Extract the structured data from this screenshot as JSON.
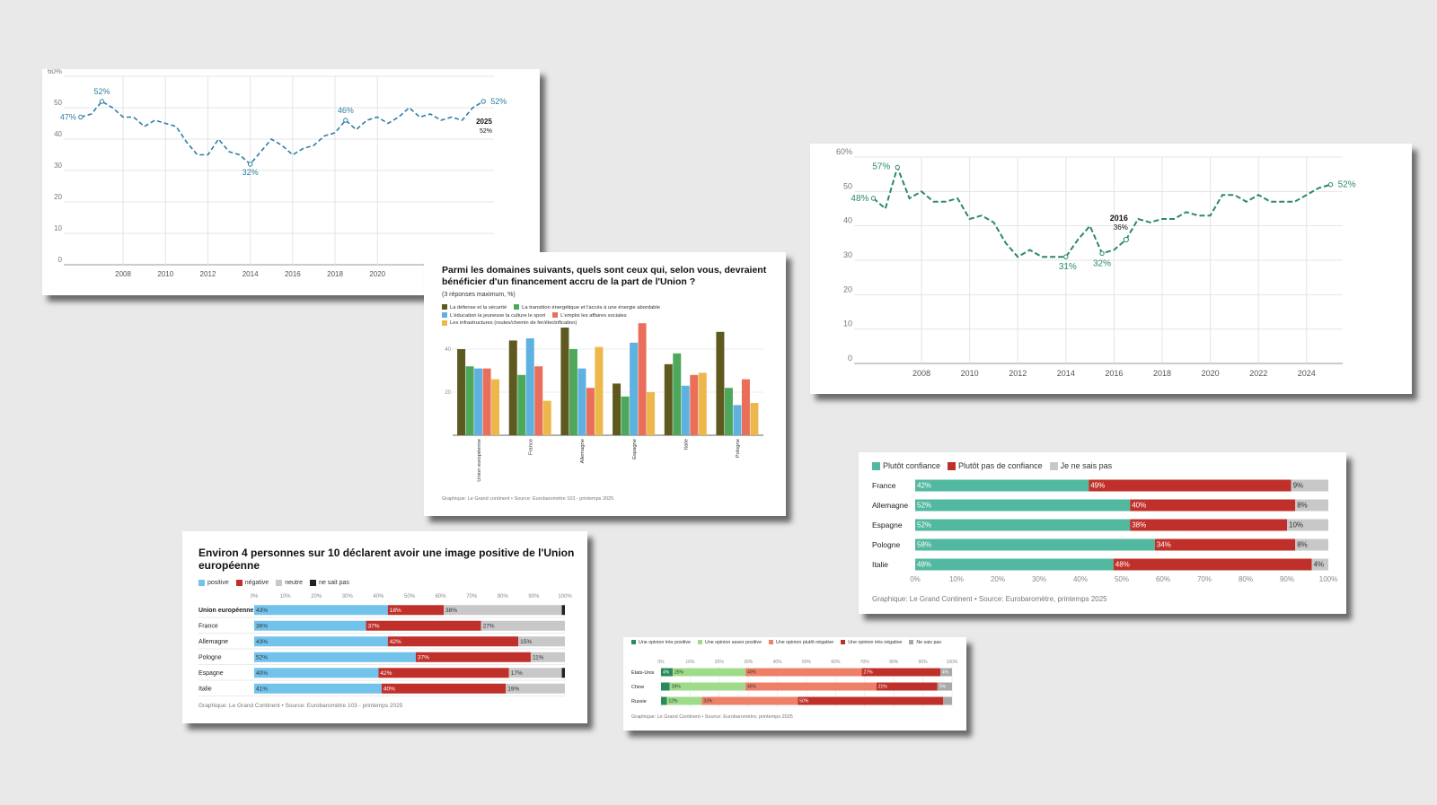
{
  "chart_data": [
    {
      "id": "line1",
      "type": "line",
      "color": "#2e7fa3",
      "ylim": [
        0,
        60
      ],
      "y_ticks": [
        "0",
        "10",
        "20",
        "30",
        "40",
        "50",
        "60%"
      ],
      "x_ticks": [
        "2008",
        "2010",
        "2012",
        "2014",
        "2016",
        "2018",
        "2020"
      ],
      "x": [
        2006,
        2006.5,
        2007,
        2007.5,
        2008,
        2008.5,
        2009,
        2009.5,
        2010,
        2010.5,
        2011,
        2011.5,
        2012,
        2012.5,
        2013,
        2013.5,
        2014,
        2014.5,
        2015,
        2015.5,
        2016,
        2016.5,
        2017,
        2017.5,
        2018,
        2018.5,
        2019,
        2019.5,
        2020,
        2020.5,
        2021,
        2021.5,
        2022,
        2022.5,
        2023,
        2023.5,
        2024,
        2024.5,
        2025
      ],
      "values": [
        47,
        48,
        52,
        50,
        47,
        47,
        44,
        46,
        45,
        44,
        39,
        35,
        35,
        40,
        36,
        35,
        32,
        36,
        40,
        38,
        35,
        37,
        38,
        41,
        42,
        46,
        43,
        46,
        47,
        45,
        47,
        50,
        47,
        48,
        46,
        47,
        46,
        50,
        52
      ],
      "annotations": [
        "47%",
        "52%",
        "32%",
        "46%",
        "52%"
      ],
      "end_year": "2025",
      "end_value": "52%"
    },
    {
      "id": "line2",
      "type": "line",
      "color": "#2a8a68",
      "ylim": [
        0,
        60
      ],
      "y_ticks": [
        "0",
        "10",
        "20",
        "30",
        "40",
        "50",
        "60%"
      ],
      "x_ticks": [
        "2008",
        "2010",
        "2012",
        "2014",
        "2016",
        "2018",
        "2020",
        "2022",
        "2024"
      ],
      "x": [
        2006,
        2006.5,
        2007,
        2007.5,
        2008,
        2008.5,
        2009,
        2009.5,
        2010,
        2010.5,
        2011,
        2011.5,
        2012,
        2012.5,
        2013,
        2013.5,
        2014,
        2014.5,
        2015,
        2015.5,
        2016,
        2016.5,
        2017,
        2017.5,
        2018,
        2018.5,
        2019,
        2019.5,
        2020,
        2020.5,
        2021,
        2021.5,
        2022,
        2022.5,
        2023,
        2023.5,
        2024,
        2024.5,
        2025
      ],
      "values": [
        48,
        45,
        57,
        48,
        50,
        47,
        47,
        48,
        42,
        43,
        41,
        35,
        31,
        33,
        31,
        31,
        31,
        36,
        40,
        32,
        33,
        36,
        42,
        41,
        42,
        42,
        44,
        43,
        43,
        49,
        49,
        47,
        49,
        47,
        47,
        47,
        49,
        51,
        52
      ],
      "annotations": [
        "48%",
        "57%",
        "31%",
        "32%",
        "52%"
      ],
      "callout_year": "2016",
      "callout_value": "36%"
    },
    {
      "id": "bars",
      "type": "bar",
      "title": "Parmi les domaines suivants, quels sont ceux qui, selon vous, devraient bénéficier d'un financement accru de la part de l'Union ?",
      "subtitle": "(3 réponses maximum, %)",
      "y_ticks": [
        "20",
        "40"
      ],
      "ylim": [
        0,
        50
      ],
      "categories": [
        "Union européenne",
        "France",
        "Allemagne",
        "Espagne",
        "Italie",
        "Pologne"
      ],
      "series": [
        {
          "name": "La défense et la sécurité",
          "color": "#5e5a1f",
          "values": [
            40,
            44,
            50,
            24,
            33,
            48
          ]
        },
        {
          "name": "La transition énergétique et l'accès à une énergie abordable",
          "color": "#4ea85c",
          "values": [
            32,
            28,
            40,
            18,
            38,
            22
          ]
        },
        {
          "name": "L'éducation la jeunesse la culture le sport",
          "color": "#5fb2e0",
          "values": [
            31,
            45,
            31,
            43,
            23,
            14
          ]
        },
        {
          "name": "L'emploi les affaires sociales",
          "color": "#ea6f5a",
          "values": [
            31,
            32,
            22,
            52,
            28,
            26
          ]
        },
        {
          "name": "Les infrastructures (routes/chemin de fer/électrification)",
          "color": "#edb84b",
          "values": [
            26,
            16,
            41,
            20,
            29,
            15
          ]
        }
      ],
      "source": "Graphique: Le Grand continent • Source: Eurobaromètre 103 - printemps 2025"
    },
    {
      "id": "image",
      "type": "bar",
      "orientation": "horizontal-stacked",
      "title": "Environ 4 personnes sur 10 déclarent avoir une image positive de l'Union européenne",
      "x_ticks": [
        "0%",
        "10%",
        "20%",
        "30%",
        "40%",
        "50%",
        "60%",
        "70%",
        "80%",
        "90%",
        "100%"
      ],
      "categories": [
        "Union européenne",
        "France",
        "Allemagne",
        "Pologne",
        "Espagne",
        "Italie"
      ],
      "series": [
        {
          "name": "positive",
          "color": "#72c3ec",
          "values": [
            43,
            36,
            43,
            52,
            40,
            41
          ],
          "labels": [
            "43%",
            "36%",
            "43%",
            "52%",
            "40%",
            "41%"
          ]
        },
        {
          "name": "négative",
          "color": "#c0302a",
          "values": [
            18,
            37,
            42,
            37,
            42,
            40
          ],
          "labels": [
            "18%",
            "37%",
            "42%",
            "37%",
            "42%",
            "40%"
          ]
        },
        {
          "name": "neutre",
          "color": "#c8c8c8",
          "values": [
            38,
            27,
            15,
            11,
            17,
            19
          ],
          "labels": [
            "38%",
            "27%",
            "15%",
            "11%",
            "17%",
            "19%"
          ]
        },
        {
          "name": "ne sait pas",
          "color": "#222222",
          "values": [
            1,
            0,
            0,
            0,
            1,
            0
          ],
          "labels": [
            "",
            "",
            "",
            "",
            "",
            ""
          ]
        }
      ],
      "source": "Graphique: Le Grand Continent • Source: Eurobaromètre 103 - printemps 2025"
    },
    {
      "id": "confiance",
      "type": "bar",
      "orientation": "horizontal-stacked",
      "x_ticks": [
        "0%",
        "10%",
        "20%",
        "30%",
        "40%",
        "50%",
        "60%",
        "70%",
        "80%",
        "90%",
        "100%"
      ],
      "categories": [
        "France",
        "Allemagne",
        "Espagne",
        "Pologne",
        "Italie"
      ],
      "series": [
        {
          "name": "Plutôt confiance",
          "color": "#52b8a0",
          "values": [
            42,
            52,
            52,
            58,
            48
          ],
          "labels": [
            "42%",
            "52%",
            "52%",
            "58%",
            "48%"
          ]
        },
        {
          "name": "Plutôt pas de confiance",
          "color": "#c0302a",
          "values": [
            49,
            40,
            38,
            34,
            48
          ],
          "labels": [
            "49%",
            "40%",
            "38%",
            "34%",
            "48%"
          ]
        },
        {
          "name": "Je ne sais pas",
          "color": "#c8c8c8",
          "values": [
            9,
            8,
            10,
            8,
            4
          ],
          "labels": [
            "9%",
            "8%",
            "10%",
            "8%",
            "4%"
          ]
        }
      ],
      "source": "Graphique: Le Grand Continent • Source: Eurobaromètre, printemps 2025"
    },
    {
      "id": "opinion",
      "type": "bar",
      "orientation": "horizontal-stacked",
      "x_ticks": [
        "0%",
        "10%",
        "20%",
        "30%",
        "40%",
        "50%",
        "60%",
        "70%",
        "80%",
        "90%",
        "100%"
      ],
      "categories": [
        "États-Unis",
        "Chine",
        "Russie"
      ],
      "series": [
        {
          "name": "Une opinion très positive",
          "color": "#2a8a5c",
          "values": [
            4,
            3,
            2
          ],
          "labels": [
            "4%",
            "",
            ""
          ]
        },
        {
          "name": "Une opinion assez positive",
          "color": "#9fdc8a",
          "values": [
            25,
            26,
            12
          ],
          "labels": [
            "25%",
            "26%",
            "12%"
          ]
        },
        {
          "name": "Une opinion plutôt négative",
          "color": "#ee8068",
          "values": [
            40,
            45,
            33
          ],
          "labels": [
            "40%",
            "45%",
            "33%"
          ]
        },
        {
          "name": "Une opinion très négative",
          "color": "#c0302a",
          "values": [
            27,
            21,
            50
          ],
          "labels": [
            "27%",
            "21%",
            "50%"
          ]
        },
        {
          "name": "Ne sais pas",
          "color": "#a8a8a8",
          "values": [
            4,
            5,
            3
          ],
          "labels": [
            "4%",
            "5%",
            ""
          ]
        }
      ],
      "source": "Graphique: Le Grand Continent • Source: Eurobaromètre, printemps 2025"
    }
  ]
}
